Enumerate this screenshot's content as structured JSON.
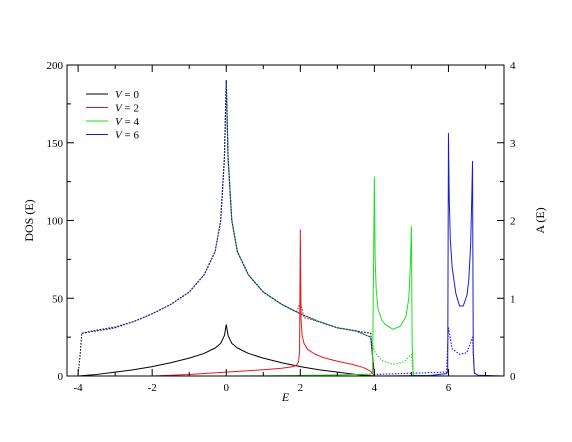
{
  "chart_data": {
    "type": "line",
    "xlabel": "E",
    "ylabel_left": "DOS (E)",
    "ylabel_right": "A (E)",
    "xlim": [
      -4.3,
      7.5
    ],
    "ylim_left": [
      0,
      200
    ],
    "ylim_right": [
      0,
      4
    ],
    "x_ticks": [
      -4,
      -2,
      0,
      2,
      4,
      6
    ],
    "y_ticks_left": [
      0,
      50,
      100,
      150,
      200
    ],
    "y_ticks_right": [
      0,
      1,
      2,
      3,
      4
    ],
    "grid": false,
    "legend_position": "top-left",
    "legend": [
      {
        "var": "V",
        "eq": " = 0",
        "color": "#000000"
      },
      {
        "var": "V",
        "eq": " = 2",
        "color": "#e8171c"
      },
      {
        "var": "V",
        "eq": " = 4",
        "color": "#19e119"
      },
      {
        "var": "V",
        "eq": " = 6",
        "color": "#1a1ad4"
      }
    ],
    "series": [
      {
        "name": "V = 0",
        "color": "#000000",
        "line_style": "solid",
        "axis": "left",
        "x": [
          -4,
          -3.5,
          -3,
          -2.5,
          -2,
          -1.5,
          -1,
          -0.6,
          -0.3,
          -0.15,
          -0.05,
          0,
          0.05,
          0.15,
          0.3,
          0.6,
          1,
          1.5,
          2,
          2.5,
          3,
          3.5,
          4
        ],
        "y": [
          0,
          1,
          2.5,
          4,
          6,
          8.5,
          11.5,
          14.5,
          18,
          21,
          26,
          33,
          26,
          21,
          18,
          14.5,
          11.5,
          8.5,
          6,
          4,
          2.5,
          1,
          0
        ]
      },
      {
        "name": "V = 2",
        "color": "#e8171c",
        "line_style": "solid",
        "axis": "left",
        "x": [
          -2,
          -1,
          0,
          1,
          1.5,
          1.8,
          1.9,
          1.95,
          1.98,
          2.0,
          2.02,
          2.05,
          2.1,
          2.2,
          2.4,
          2.6,
          3,
          3.4,
          3.7,
          3.9,
          4.0
        ],
        "y": [
          0,
          1,
          2.5,
          4,
          5,
          6,
          7,
          9,
          15,
          94,
          36,
          26,
          21,
          17,
          14,
          12,
          9.5,
          7.5,
          5.5,
          3,
          0
        ]
      },
      {
        "name": "V = 4",
        "color": "#19e119",
        "line_style": "solid",
        "axis": "left",
        "x": [
          0,
          2,
          3,
          3.9,
          3.95,
          4.0,
          4.02,
          4.05,
          4.1,
          4.2,
          4.3,
          4.5,
          4.7,
          4.85,
          4.93,
          4.97,
          5.0,
          5.02,
          5.05,
          6.0
        ],
        "y": [
          0,
          0.3,
          0.7,
          1.2,
          2,
          128,
          75,
          55,
          43,
          36,
          33,
          30,
          32,
          38,
          50,
          70,
          96,
          20,
          0.5,
          0
        ]
      },
      {
        "name": "V = 6",
        "color": "#1a1ad4",
        "line_style": "solid",
        "axis": "left",
        "x": [
          4,
          5.5,
          5.95,
          5.98,
          6.0,
          6.02,
          6.05,
          6.1,
          6.2,
          6.3,
          6.4,
          6.5,
          6.55,
          6.6,
          6.63,
          6.65,
          6.67,
          6.7,
          6.8,
          7.5
        ],
        "y": [
          0,
          0.3,
          1.5,
          3,
          156,
          115,
          88,
          70,
          53,
          45,
          45,
          52,
          62,
          85,
          115,
          138,
          15,
          2,
          0.5,
          0
        ]
      },
      {
        "name": "V = 0",
        "color": "#000000",
        "line_style": "dotted",
        "axis": "right",
        "x": [
          -4,
          -3.95,
          -3.9,
          -3.5,
          -3,
          -2.5,
          -2,
          -1.5,
          -1,
          -0.6,
          -0.3,
          -0.15,
          -0.05,
          0,
          0.05,
          0.15,
          0.3,
          0.6,
          1,
          1.5,
          2,
          2.5,
          3,
          3.5,
          3.9,
          3.95,
          4
        ],
        "y": [
          0.02,
          0.25,
          0.55,
          0.58,
          0.62,
          0.7,
          0.8,
          0.92,
          1.08,
          1.3,
          1.6,
          2.0,
          2.8,
          3.8,
          2.8,
          2.0,
          1.6,
          1.3,
          1.08,
          0.92,
          0.8,
          0.7,
          0.62,
          0.58,
          0.55,
          0.25,
          0.02
        ]
      },
      {
        "name": "V = 2",
        "color": "#e8171c",
        "line_style": "dotted",
        "axis": "right",
        "x": [
          -3.9,
          -3.5,
          -3,
          -2.5,
          -2,
          -1.5,
          -1,
          -0.6,
          -0.3,
          -0.15,
          -0.05,
          0,
          0.05,
          0.15,
          0.3,
          0.6,
          1,
          1.5,
          1.9,
          2.0,
          2.1,
          2.5,
          3,
          3.5,
          3.9,
          4.0
        ],
        "y": [
          0.55,
          0.59,
          0.63,
          0.7,
          0.8,
          0.92,
          1.08,
          1.3,
          1.6,
          2.0,
          2.8,
          3.75,
          2.8,
          2.0,
          1.6,
          1.3,
          1.08,
          0.92,
          0.82,
          0.95,
          0.75,
          0.7,
          0.62,
          0.58,
          0.5,
          0.02
        ]
      },
      {
        "name": "V = 4",
        "color": "#19e119",
        "line_style": "dotted",
        "axis": "right",
        "x": [
          -3.9,
          -3.5,
          -3,
          -2.5,
          -2,
          -1.5,
          -1,
          -0.6,
          -0.3,
          -0.15,
          -0.05,
          0,
          0.05,
          0.15,
          0.3,
          0.6,
          1,
          1.5,
          2,
          2.5,
          3,
          3.5,
          3.9,
          4.0,
          4.2,
          4.5,
          4.8,
          5.0,
          5.05
        ],
        "y": [
          0.55,
          0.59,
          0.63,
          0.7,
          0.8,
          0.92,
          1.08,
          1.3,
          1.6,
          2.0,
          2.8,
          3.75,
          2.8,
          2.0,
          1.6,
          1.3,
          1.08,
          0.92,
          0.8,
          0.7,
          0.62,
          0.58,
          0.5,
          0.32,
          0.2,
          0.15,
          0.18,
          0.28,
          0.0
        ]
      },
      {
        "name": "V = 6",
        "color": "#1a1ad4",
        "line_style": "dotted",
        "axis": "right",
        "x": [
          -3.9,
          -3.5,
          -3,
          -2.5,
          -2,
          -1.5,
          -1,
          -0.6,
          -0.3,
          -0.15,
          -0.05,
          0,
          0.05,
          0.15,
          0.3,
          0.6,
          1,
          1.5,
          2,
          2.5,
          3,
          3.5,
          3.9,
          4.0,
          5.95,
          6.0,
          6.1,
          6.3,
          6.5,
          6.65,
          6.7
        ],
        "y": [
          0.55,
          0.59,
          0.63,
          0.7,
          0.8,
          0.92,
          1.08,
          1.3,
          1.6,
          2.0,
          2.8,
          3.8,
          2.8,
          2.0,
          1.6,
          1.3,
          1.08,
          0.92,
          0.8,
          0.7,
          0.62,
          0.58,
          0.5,
          0.02,
          0.05,
          0.62,
          0.35,
          0.28,
          0.3,
          0.5,
          0.02
        ]
      }
    ]
  }
}
